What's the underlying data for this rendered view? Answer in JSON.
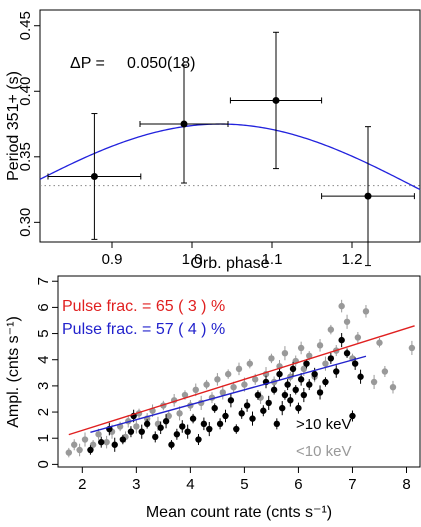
{
  "chart_data": [
    {
      "type": "scatter",
      "xlabel": "Orb. phase",
      "ylabel": "Period 351+ (s)",
      "xticks": [
        "0.9",
        "1.0",
        "1.1",
        "1.2"
      ],
      "yticks": [
        "0.30",
        "0.35",
        "0.40",
        "0.45"
      ],
      "xlim": [
        0.81,
        1.285
      ],
      "ylim": [
        0.285,
        0.462
      ],
      "annotation": {
        "label": "ΔP =",
        "value": "0.050(18)"
      },
      "points": [
        {
          "x": 0.878,
          "y": 0.335,
          "xerr": 0.058,
          "yerr": 0.048
        },
        {
          "x": 0.99,
          "y": 0.375,
          "xerr": 0.055,
          "yerr": 0.045
        },
        {
          "x": 1.105,
          "y": 0.393,
          "xerr": 0.057,
          "yerr": 0.052
        },
        {
          "x": 1.22,
          "y": 0.32,
          "xerr": 0.058,
          "yerr": 0.053
        }
      ],
      "fit": {
        "type": "sinusoid",
        "mean": 0.325,
        "amplitude": 0.05,
        "peak_x": 1.035,
        "period": 1.0,
        "color": "#2222dd"
      },
      "reference_line": {
        "y": 0.328,
        "style": "dotted",
        "color": "#888888"
      }
    },
    {
      "type": "scatter",
      "xlabel": "Mean count rate (cnts s⁻¹)",
      "ylabel": "Ampl. (cnts s⁻¹)",
      "xticks": [
        "2",
        "3",
        "4",
        "5",
        "6",
        "7",
        "8"
      ],
      "yticks": [
        "0",
        "1",
        "2",
        "3",
        "4",
        "5",
        "6",
        "7"
      ],
      "xlim": [
        1.55,
        8.25
      ],
      "ylim": [
        -0.1,
        7.2
      ],
      "annotations": [
        {
          "text": "Pulse frac. = 65 ( 3 ) %",
          "color": "#e02020"
        },
        {
          "text": "Pulse frac. = 57 ( 4 ) %",
          "color": "#2222cc"
        }
      ],
      "legend_position": "bottom-right",
      "series": [
        {
          "name": ">10 keV",
          "color": "#000000",
          "fit": {
            "slope": 0.57,
            "x_range": [
              2.15,
              7.25
            ],
            "color": "#2222cc"
          },
          "points": [
            [
              2.15,
              0.55
            ],
            [
              2.35,
              0.85
            ],
            [
              2.5,
              1.35
            ],
            [
              2.6,
              0.75
            ],
            [
              2.75,
              0.95
            ],
            [
              2.9,
              1.25
            ],
            [
              2.95,
              1.85
            ],
            [
              3.1,
              1.25
            ],
            [
              3.2,
              1.55
            ],
            [
              3.35,
              1.05
            ],
            [
              3.45,
              1.4
            ],
            [
              3.55,
              1.65
            ],
            [
              3.65,
              0.75
            ],
            [
              3.75,
              1.15
            ],
            [
              3.85,
              1.45
            ],
            [
              3.95,
              1.25
            ],
            [
              4.05,
              1.75
            ],
            [
              4.15,
              0.95
            ],
            [
              4.25,
              1.55
            ],
            [
              4.35,
              1.35
            ],
            [
              4.45,
              2.15
            ],
            [
              4.55,
              1.55
            ],
            [
              4.65,
              1.85
            ],
            [
              4.75,
              2.45
            ],
            [
              4.85,
              1.35
            ],
            [
              4.95,
              1.95
            ],
            [
              5.05,
              2.25
            ],
            [
              5.15,
              1.75
            ],
            [
              5.25,
              2.65
            ],
            [
              5.35,
              2.05
            ],
            [
              5.4,
              3.15
            ],
            [
              5.45,
              2.35
            ],
            [
              5.55,
              2.85
            ],
            [
              5.6,
              1.55
            ],
            [
              5.65,
              3.45
            ],
            [
              5.7,
              2.15
            ],
            [
              5.75,
              2.65
            ],
            [
              5.8,
              3.05
            ],
            [
              5.85,
              2.45
            ],
            [
              5.9,
              3.65
            ],
            [
              5.95,
              2.85
            ],
            [
              6.0,
              2.15
            ],
            [
              6.05,
              3.25
            ],
            [
              6.1,
              2.65
            ],
            [
              6.15,
              3.85
            ],
            [
              6.2,
              3.05
            ],
            [
              6.3,
              3.45
            ],
            [
              6.4,
              2.75
            ],
            [
              6.5,
              3.15
            ],
            [
              6.6,
              4.05
            ],
            [
              6.7,
              3.55
            ],
            [
              6.8,
              4.75
            ],
            [
              6.9,
              4.25
            ],
            [
              7.0,
              1.85
            ],
            [
              7.05,
              3.85
            ],
            [
              7.15,
              3.35
            ]
          ]
        },
        {
          "name": "<10 keV",
          "color": "#999999",
          "fit": {
            "slope": 0.65,
            "x_range": [
              1.75,
              8.15
            ],
            "color": "#e02020"
          },
          "points": [
            [
              1.75,
              0.45
            ],
            [
              1.85,
              0.75
            ],
            [
              1.95,
              0.55
            ],
            [
              2.05,
              0.95
            ],
            [
              2.2,
              0.75
            ],
            [
              2.3,
              1.15
            ],
            [
              2.45,
              0.85
            ],
            [
              2.55,
              1.25
            ],
            [
              2.7,
              1.45
            ],
            [
              2.8,
              1.05
            ],
            [
              2.85,
              1.65
            ],
            [
              3.0,
              1.45
            ],
            [
              3.05,
              1.95
            ],
            [
              3.2,
              1.75
            ],
            [
              3.3,
              2.05
            ],
            [
              3.4,
              1.55
            ],
            [
              3.5,
              2.25
            ],
            [
              3.6,
              1.85
            ],
            [
              3.7,
              2.45
            ],
            [
              3.8,
              1.95
            ],
            [
              3.9,
              2.65
            ],
            [
              4.0,
              2.25
            ],
            [
              4.1,
              2.85
            ],
            [
              4.2,
              2.35
            ],
            [
              4.3,
              3.05
            ],
            [
              4.4,
              2.55
            ],
            [
              4.5,
              3.25
            ],
            [
              4.6,
              2.75
            ],
            [
              4.7,
              3.45
            ],
            [
              4.8,
              2.95
            ],
            [
              4.9,
              3.65
            ],
            [
              5.0,
              3.05
            ],
            [
              5.1,
              3.85
            ],
            [
              5.2,
              3.25
            ],
            [
              5.3,
              2.55
            ],
            [
              5.4,
              3.45
            ],
            [
              5.5,
              4.05
            ],
            [
              5.55,
              3.15
            ],
            [
              5.65,
              3.75
            ],
            [
              5.75,
              4.25
            ],
            [
              5.85,
              3.35
            ],
            [
              5.95,
              3.95
            ],
            [
              6.05,
              4.45
            ],
            [
              6.1,
              3.65
            ],
            [
              6.2,
              4.15
            ],
            [
              6.3,
              3.35
            ],
            [
              6.4,
              4.55
            ],
            [
              6.5,
              3.85
            ],
            [
              6.6,
              5.15
            ],
            [
              6.7,
              4.35
            ],
            [
              6.8,
              6.05
            ],
            [
              6.9,
              5.45
            ],
            [
              7.0,
              4.05
            ],
            [
              7.1,
              4.85
            ],
            [
              7.25,
              5.85
            ],
            [
              7.4,
              3.15
            ],
            [
              7.5,
              4.65
            ],
            [
              7.6,
              3.55
            ],
            [
              7.75,
              2.95
            ],
            [
              8.1,
              4.45
            ]
          ]
        }
      ]
    }
  ]
}
